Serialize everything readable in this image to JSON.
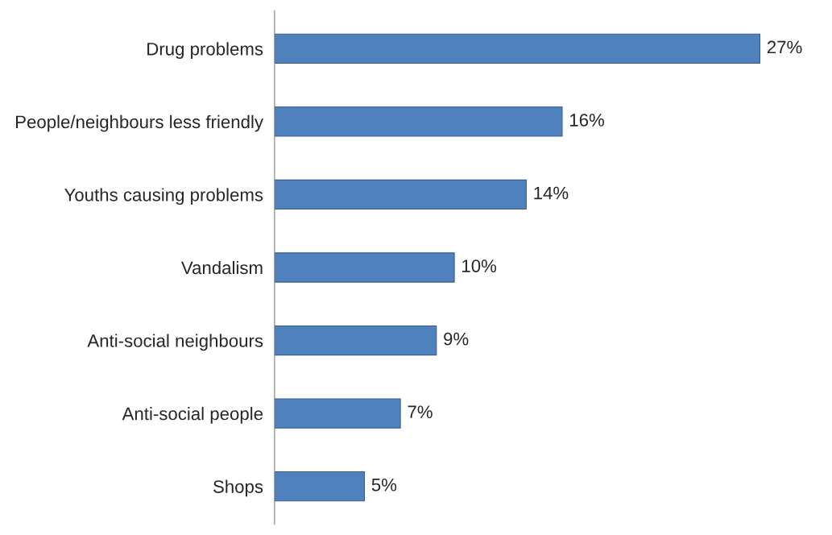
{
  "chart_data": {
    "type": "bar",
    "orientation": "horizontal",
    "categories": [
      "Drug problems",
      "People/neighbours less friendly",
      "Youths causing problems",
      "Vandalism",
      "Anti-social neighbours",
      "Anti-social people",
      "Shops"
    ],
    "values": [
      27,
      16,
      14,
      10,
      9,
      7,
      5
    ],
    "value_labels": [
      "27%",
      "16%",
      "14%",
      "10%",
      "9%",
      "7%",
      "5%"
    ],
    "color": "#4f81bd",
    "grid": false,
    "legend": false
  }
}
